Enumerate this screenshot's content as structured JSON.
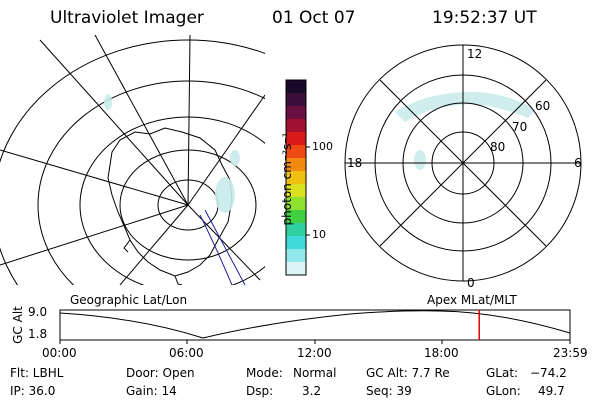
{
  "header": {
    "title": "Ultraviolet Imager",
    "date": "01 Oct 07",
    "time": "19:52:37 UT"
  },
  "colorbar": {
    "unit_label": "photon cm⁻²s⁻¹",
    "ticks": [
      "100",
      "10"
    ],
    "colors": [
      "#1a0a2a",
      "#3a0e3a",
      "#6a1040",
      "#a01030",
      "#d81a1a",
      "#f04a14",
      "#f08a10",
      "#f0c010",
      "#d8e020",
      "#90e030",
      "#40d040",
      "#30d0a0",
      "#40d8d8",
      "#90e8e8",
      "#d8f4f4"
    ]
  },
  "geo_map": {
    "label": "Geographic Lat/Lon"
  },
  "polar_map": {
    "label": "Apex MLat/MLT",
    "mlt_labels": {
      "top": "12",
      "right": "6",
      "bottom": "0",
      "left": "18"
    },
    "lat_labels": [
      "60",
      "70",
      "80"
    ]
  },
  "timeline": {
    "ylabel": "GC Alt",
    "yticks": [
      "9.0",
      "1.8"
    ],
    "xticks": [
      "00:00",
      "06:00",
      "12:00",
      "18:00",
      "23:59"
    ],
    "current_fraction": 0.822,
    "marker_color": "#e00000"
  },
  "info": {
    "flt": "Flt: LBHL",
    "ip": "IP: 36.0",
    "door": "Door: Open",
    "gain": "Gain: 14",
    "mode_label": "Mode:",
    "mode_value": "Normal",
    "dsp_label": "Dsp:",
    "dsp_value": "3.2",
    "gcalt": "GC Alt: 7.7 Re",
    "seq": "Seq: 39",
    "glat_label": "GLat:",
    "glat_value": "−74.2",
    "glon_label": "GLon:",
    "glon_value": "49.7"
  }
}
